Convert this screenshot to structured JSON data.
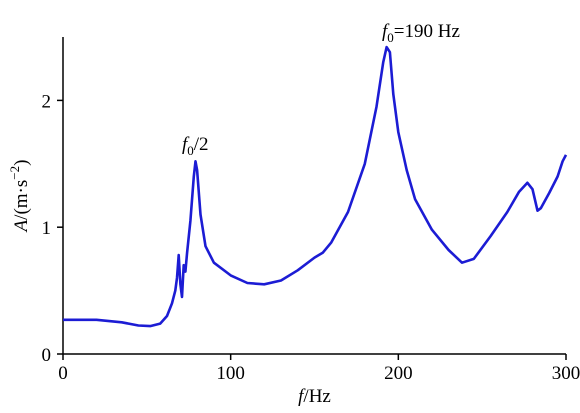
{
  "chart_data": {
    "type": "line",
    "x_label": [
      "f",
      "/Hz"
    ],
    "y_label": [
      "A",
      "/(m·s",
      "−2",
      ")"
    ],
    "annotations": [
      [
        "f",
        "0",
        "/2"
      ],
      [
        "f",
        "0",
        "=190 Hz"
      ]
    ],
    "xlim": [
      0,
      300
    ],
    "xticks": [
      0,
      100,
      200,
      300
    ],
    "ylim": [
      0,
      2.5
    ],
    "yticks": [
      0,
      1,
      2
    ],
    "series": [
      {
        "color": "#1c1cd4",
        "x": [
          0,
          20,
          35,
          45,
          52,
          58,
          62,
          65,
          67,
          68,
          69,
          70,
          71,
          72,
          73,
          74,
          76,
          78,
          79,
          80,
          82,
          85,
          90,
          100,
          110,
          120,
          130,
          140,
          150,
          155,
          160,
          170,
          180,
          187,
          191,
          193,
          195,
          197,
          200,
          205,
          210,
          220,
          230,
          238,
          245,
          255,
          265,
          272,
          277,
          280,
          283,
          285,
          290,
          295,
          298,
          300
        ],
        "values": [
          0.27,
          0.27,
          0.25,
          0.225,
          0.22,
          0.24,
          0.3,
          0.4,
          0.5,
          0.6,
          0.78,
          0.55,
          0.45,
          0.7,
          0.65,
          0.8,
          1.05,
          1.4,
          1.52,
          1.45,
          1.1,
          0.85,
          0.72,
          0.62,
          0.56,
          0.55,
          0.58,
          0.66,
          0.76,
          0.8,
          0.88,
          1.12,
          1.5,
          1.95,
          2.3,
          2.42,
          2.38,
          2.05,
          1.75,
          1.45,
          1.22,
          0.98,
          0.82,
          0.72,
          0.75,
          0.93,
          1.12,
          1.28,
          1.35,
          1.3,
          1.13,
          1.15,
          1.27,
          1.4,
          1.52,
          1.57
        ]
      }
    ]
  }
}
